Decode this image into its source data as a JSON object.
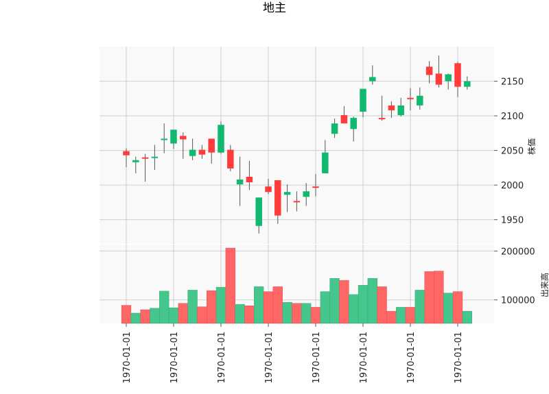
{
  "chart_data": [
    {
      "type": "candlestick",
      "title": "地主",
      "ylabel": "株価",
      "ylim": [
        1915,
        2200
      ],
      "yticks": [
        1950,
        2000,
        2050,
        2100,
        2150
      ],
      "xlabels": [
        "1970-01-01",
        "1970-01-01",
        "1970-01-01",
        "1970-01-01",
        "1970-01-01",
        "1970-01-01",
        "1970-01-01",
        "1970-01-01"
      ],
      "grid": true,
      "colors": {
        "up": "#ff3b3b",
        "down": "#0fb96f"
      },
      "candles": [
        {
          "open": 2043,
          "high": 2053,
          "low": 2026,
          "close": 2049
        },
        {
          "open": 2036,
          "high": 2041,
          "low": 2017,
          "close": 2033
        },
        {
          "open": 2038,
          "high": 2045,
          "low": 2005,
          "close": 2040
        },
        {
          "open": 2041,
          "high": 2058,
          "low": 2022,
          "close": 2039
        },
        {
          "open": 2067,
          "high": 2089,
          "low": 2046,
          "close": 2065
        },
        {
          "open": 2080,
          "high": 2080,
          "low": 2052,
          "close": 2060
        },
        {
          "open": 2066,
          "high": 2076,
          "low": 2038,
          "close": 2071
        },
        {
          "open": 2051,
          "high": 2067,
          "low": 2036,
          "close": 2042
        },
        {
          "open": 2044,
          "high": 2058,
          "low": 2038,
          "close": 2051
        },
        {
          "open": 2047,
          "high": 2067,
          "low": 2031,
          "close": 2067
        },
        {
          "open": 2087,
          "high": 2092,
          "low": 2045,
          "close": 2047
        },
        {
          "open": 2024,
          "high": 2058,
          "low": 2020,
          "close": 2051
        },
        {
          "open": 2008,
          "high": 2041,
          "low": 1970,
          "close": 2001
        },
        {
          "open": 2004,
          "high": 2035,
          "low": 1993,
          "close": 2012
        },
        {
          "open": 1982,
          "high": 1982,
          "low": 1930,
          "close": 1941
        },
        {
          "open": 1990,
          "high": 2009,
          "low": 1987,
          "close": 1998
        },
        {
          "open": 1956,
          "high": 2007,
          "low": 1944,
          "close": 2007
        },
        {
          "open": 1990,
          "high": 2001,
          "low": 1961,
          "close": 1986
        },
        {
          "open": 1976,
          "high": 1991,
          "low": 1962,
          "close": 1977
        },
        {
          "open": 1991,
          "high": 2003,
          "low": 1970,
          "close": 1983
        },
        {
          "open": 1997,
          "high": 2016,
          "low": 1984,
          "close": 1998
        },
        {
          "open": 2047,
          "high": 2065,
          "low": 2017,
          "close": 2017
        },
        {
          "open": 2089,
          "high": 2096,
          "low": 2068,
          "close": 2074
        },
        {
          "open": 2089,
          "high": 2114,
          "low": 2089,
          "close": 2101
        },
        {
          "open": 2097,
          "high": 2099,
          "low": 2063,
          "close": 2081
        },
        {
          "open": 2139,
          "high": 2139,
          "low": 2098,
          "close": 2106
        },
        {
          "open": 2156,
          "high": 2173,
          "low": 2145,
          "close": 2150
        },
        {
          "open": 2095,
          "high": 2129,
          "low": 2093,
          "close": 2097
        },
        {
          "open": 2108,
          "high": 2121,
          "low": 2097,
          "close": 2115
        },
        {
          "open": 2115,
          "high": 2126,
          "low": 2099,
          "close": 2101
        },
        {
          "open": 2125,
          "high": 2140,
          "low": 2108,
          "close": 2126
        },
        {
          "open": 2129,
          "high": 2141,
          "low": 2109,
          "close": 2115
        },
        {
          "open": 2159,
          "high": 2179,
          "low": 2147,
          "close": 2171
        },
        {
          "open": 2145,
          "high": 2187,
          "low": 2141,
          "close": 2161
        },
        {
          "open": 2160,
          "high": 2161,
          "low": 2138,
          "close": 2150
        },
        {
          "open": 2142,
          "high": 2178,
          "low": 2127,
          "close": 2176
        },
        {
          "open": 2150,
          "high": 2157,
          "low": 2138,
          "close": 2142
        }
      ]
    },
    {
      "type": "bar",
      "ylabel": "出来高",
      "ylim": [
        52000,
        213000
      ],
      "yticks": [
        100000,
        200000
      ],
      "grid": true,
      "volume": [
        89000,
        73000,
        80000,
        83000,
        118000,
        84000,
        93000,
        120000,
        86000,
        119000,
        126000,
        206000,
        91000,
        88000,
        127000,
        117000,
        127000,
        95000,
        93000,
        93000,
        85000,
        117000,
        144000,
        140000,
        111000,
        130000,
        144000,
        127000,
        77000,
        85000,
        85000,
        120000,
        158000,
        159000,
        114000,
        117000,
        77000
      ],
      "up_color": "#ff6666",
      "down_color": "#44c68c"
    }
  ]
}
